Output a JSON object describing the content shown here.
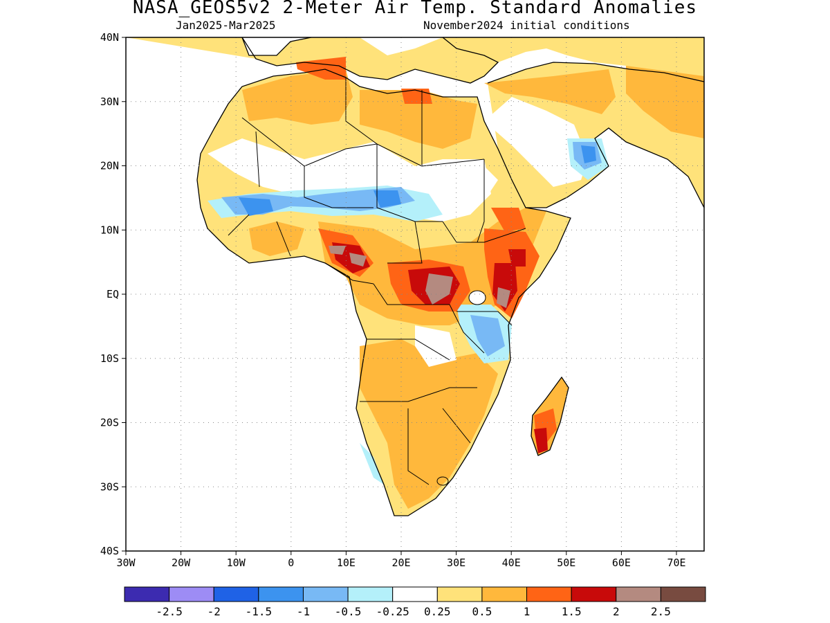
{
  "title": "NASA_GEOS5v2 2-Meter Air Temp. Standard Anomalies",
  "subtitle_left": "Jan2025-Mar2025",
  "subtitle_right": "November2024 initial conditions",
  "axes": {
    "lat_ticks": [
      "40N",
      "30N",
      "20N",
      "10N",
      "EQ",
      "10S",
      "20S",
      "30S",
      "40S"
    ],
    "lon_ticks": [
      "30W",
      "20W",
      "10W",
      "0",
      "10E",
      "20E",
      "30E",
      "40E",
      "50E",
      "60E",
      "70E"
    ]
  },
  "colorbar": {
    "colors": [
      "#3c2bb0",
      "#9d8cf5",
      "#1f62e6",
      "#3c93ef",
      "#78b9f5",
      "#b4f0fa",
      "#ffffff",
      "#ffe27a",
      "#ffb83c",
      "#ff6415",
      "#c80a0a",
      "#b48a80",
      "#784b40"
    ],
    "labels": [
      "-2.5",
      "-2",
      "-1.5",
      "-1",
      "-0.5",
      "-0.25",
      "0.25",
      "0.5",
      "1",
      "1.5",
      "2",
      "2.5"
    ]
  }
}
